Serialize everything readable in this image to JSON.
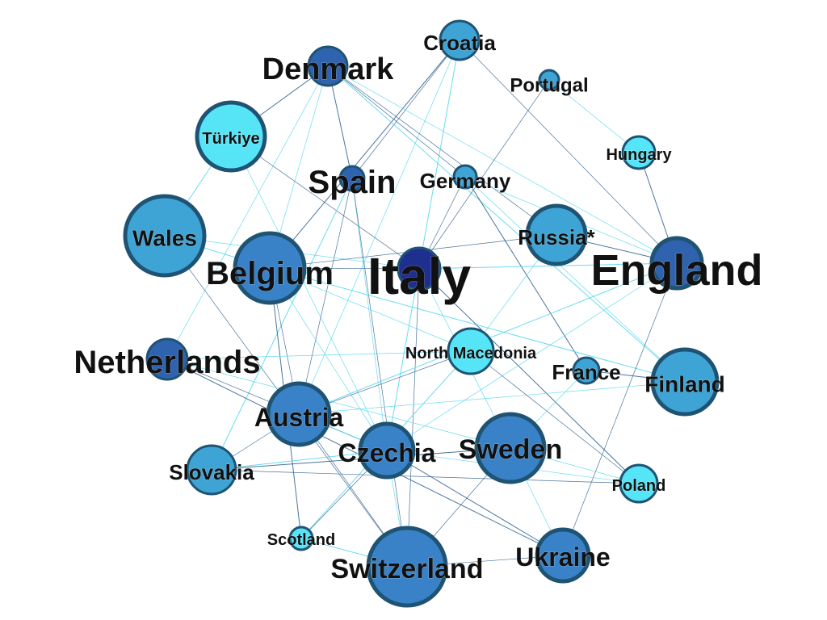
{
  "palette": {
    "navy": "#1f2f8f",
    "dark_blue": "#2f63b0",
    "blue": "#3a82c8",
    "mid_blue": "#3ea4d6",
    "cyan": "#56e4f7",
    "node_border": "#1f5373",
    "edge_dark": "#2d5d8c",
    "edge_light": "#4fd6ef"
  },
  "nodes": [
    {
      "id": "croatia",
      "label": "Croatia",
      "tone": "mid_blue"
    },
    {
      "id": "denmark",
      "label": "Denmark",
      "tone": "dark_blue"
    },
    {
      "id": "portugal",
      "label": "Portugal",
      "tone": "mid_blue"
    },
    {
      "id": "turkiye",
      "label": "Türkiye",
      "tone": "cyan"
    },
    {
      "id": "hungary",
      "label": "Hungary",
      "tone": "cyan"
    },
    {
      "id": "spain",
      "label": "Spain",
      "tone": "dark_blue"
    },
    {
      "id": "germany",
      "label": "Germany",
      "tone": "mid_blue"
    },
    {
      "id": "wales",
      "label": "Wales",
      "tone": "mid_blue"
    },
    {
      "id": "russia",
      "label": "Russia*",
      "tone": "mid_blue"
    },
    {
      "id": "belgium",
      "label": "Belgium",
      "tone": "blue"
    },
    {
      "id": "italy",
      "label": "Italy",
      "tone": "navy"
    },
    {
      "id": "england",
      "label": "England",
      "tone": "dark_blue"
    },
    {
      "id": "netherlands",
      "label": "Netherlands",
      "tone": "dark_blue"
    },
    {
      "id": "north_macedonia",
      "label": "North Macedonia",
      "tone": "cyan"
    },
    {
      "id": "france",
      "label": "France",
      "tone": "mid_blue"
    },
    {
      "id": "finland",
      "label": "Finland",
      "tone": "mid_blue"
    },
    {
      "id": "austria",
      "label": "Austria",
      "tone": "blue"
    },
    {
      "id": "czechia",
      "label": "Czechia",
      "tone": "blue"
    },
    {
      "id": "sweden",
      "label": "Sweden",
      "tone": "blue"
    },
    {
      "id": "slovakia",
      "label": "Slovakia",
      "tone": "mid_blue"
    },
    {
      "id": "poland",
      "label": "Poland",
      "tone": "cyan"
    },
    {
      "id": "scotland",
      "label": "Scotland",
      "tone": "cyan"
    },
    {
      "id": "switzerland",
      "label": "Switzerland",
      "tone": "blue"
    },
    {
      "id": "ukraine",
      "label": "Ukraine",
      "tone": "blue"
    }
  ],
  "edges": [
    [
      "croatia",
      "belgium"
    ],
    [
      "croatia",
      "austria"
    ],
    [
      "croatia",
      "england"
    ],
    [
      "croatia",
      "czechia"
    ],
    [
      "croatia",
      "spain"
    ],
    [
      "denmark",
      "belgium"
    ],
    [
      "denmark",
      "turkiye"
    ],
    [
      "denmark",
      "england"
    ],
    [
      "denmark",
      "russia"
    ],
    [
      "denmark",
      "finland"
    ],
    [
      "denmark",
      "germany"
    ],
    [
      "denmark",
      "netherlands"
    ],
    [
      "denmark",
      "spain"
    ],
    [
      "portugal",
      "hungary"
    ],
    [
      "portugal",
      "italy"
    ],
    [
      "turkiye",
      "wales"
    ],
    [
      "turkiye",
      "italy"
    ],
    [
      "turkiye",
      "czechia"
    ],
    [
      "hungary",
      "england"
    ],
    [
      "spain",
      "czechia"
    ],
    [
      "spain",
      "switzerland"
    ],
    [
      "spain",
      "slovakia"
    ],
    [
      "spain",
      "austria"
    ],
    [
      "germany",
      "england"
    ],
    [
      "germany",
      "france"
    ],
    [
      "germany",
      "finland"
    ],
    [
      "germany",
      "italy"
    ],
    [
      "wales",
      "belgium"
    ],
    [
      "wales",
      "switzerland"
    ],
    [
      "wales",
      "italy"
    ],
    [
      "russia",
      "england"
    ],
    [
      "russia",
      "north_macedonia"
    ],
    [
      "belgium",
      "italy"
    ],
    [
      "belgium",
      "finland"
    ],
    [
      "belgium",
      "austria"
    ],
    [
      "belgium",
      "czechia"
    ],
    [
      "belgium",
      "scotland"
    ],
    [
      "belgium",
      "north_macedonia"
    ],
    [
      "belgium",
      "russia"
    ],
    [
      "italy",
      "england"
    ],
    [
      "italy",
      "switzerland"
    ],
    [
      "italy",
      "sweden"
    ],
    [
      "italy",
      "poland"
    ],
    [
      "england",
      "czechia"
    ],
    [
      "england",
      "ukraine"
    ],
    [
      "england",
      "austria"
    ],
    [
      "netherlands",
      "czechia"
    ],
    [
      "netherlands",
      "sweden"
    ],
    [
      "netherlands",
      "ukraine"
    ],
    [
      "netherlands",
      "north_macedonia"
    ],
    [
      "north_macedonia",
      "austria"
    ],
    [
      "north_macedonia",
      "scotland"
    ],
    [
      "north_macedonia",
      "poland"
    ],
    [
      "france",
      "sweden"
    ],
    [
      "france",
      "finland"
    ],
    [
      "finland",
      "austria"
    ],
    [
      "austria",
      "switzerland"
    ],
    [
      "austria",
      "czechia"
    ],
    [
      "austria",
      "slovakia"
    ],
    [
      "czechia",
      "switzerland"
    ],
    [
      "czechia",
      "ukraine"
    ],
    [
      "czechia",
      "poland"
    ],
    [
      "czechia",
      "scotland"
    ],
    [
      "czechia",
      "slovakia"
    ],
    [
      "sweden",
      "switzerland"
    ],
    [
      "sweden",
      "ukraine"
    ],
    [
      "sweden",
      "slovakia"
    ],
    [
      "sweden",
      "poland"
    ],
    [
      "slovakia",
      "poland"
    ],
    [
      "scotland",
      "switzerland"
    ],
    [
      "switzerland",
      "ukraine"
    ]
  ]
}
